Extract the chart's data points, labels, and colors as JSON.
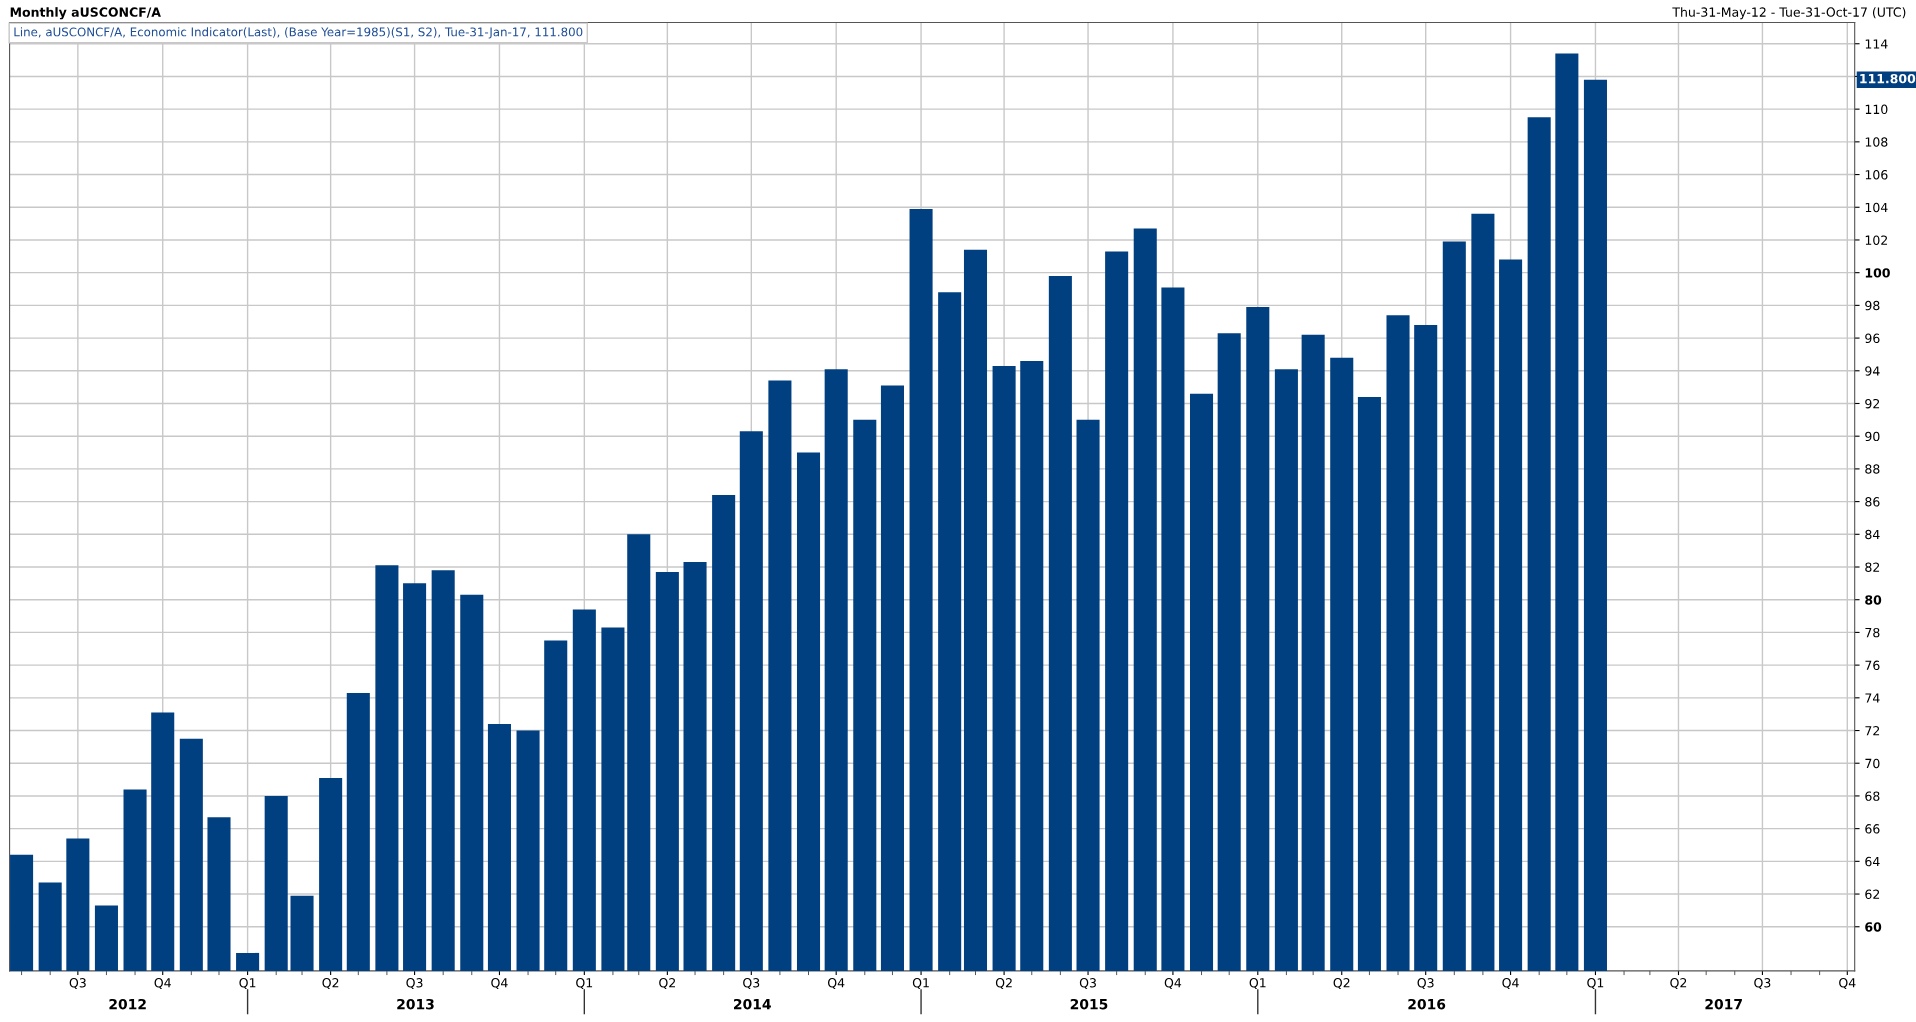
{
  "chart_data": {
    "type": "bar",
    "title": "Monthly aUSCONCF/A",
    "subtitle": "Line, aUSCONCF/A, Economic Indicator(Last), (Base Year=1985)(S1, S2), Tue-31-Jan-17, 111.800",
    "annotations": [
      "Thu-31-May-12 - Tue-31-Oct-17 (UTC)",
      "111.800"
    ],
    "x": [
      "2012-05",
      "2012-06",
      "2012-07",
      "2012-08",
      "2012-09",
      "2012-10",
      "2012-11",
      "2012-12",
      "2013-01",
      "2013-02",
      "2013-03",
      "2013-04",
      "2013-05",
      "2013-06",
      "2013-07",
      "2013-08",
      "2013-09",
      "2013-10",
      "2013-11",
      "2013-12",
      "2014-01",
      "2014-02",
      "2014-03",
      "2014-04",
      "2014-05",
      "2014-06",
      "2014-07",
      "2014-08",
      "2014-09",
      "2014-10",
      "2014-11",
      "2014-12",
      "2015-01",
      "2015-02",
      "2015-03",
      "2015-04",
      "2015-05",
      "2015-06",
      "2015-07",
      "2015-08",
      "2015-09",
      "2015-10",
      "2015-11",
      "2015-12",
      "2016-01",
      "2016-02",
      "2016-03",
      "2016-04",
      "2016-05",
      "2016-06",
      "2016-07",
      "2016-08",
      "2016-09",
      "2016-10",
      "2016-11",
      "2016-12",
      "2017-01"
    ],
    "values": [
      64.4,
      62.7,
      65.4,
      61.3,
      68.4,
      73.1,
      71.5,
      66.7,
      58.4,
      68.0,
      61.9,
      69.1,
      74.3,
      82.1,
      81.0,
      81.8,
      80.3,
      72.4,
      72.0,
      77.5,
      79.4,
      78.3,
      84.0,
      81.7,
      82.3,
      86.4,
      90.3,
      93.4,
      89.0,
      94.1,
      91.0,
      93.1,
      103.9,
      98.8,
      101.4,
      94.3,
      94.6,
      99.8,
      91.0,
      101.3,
      102.7,
      99.1,
      92.6,
      96.3,
      97.9,
      94.1,
      96.2,
      94.8,
      92.4,
      97.4,
      96.8,
      101.9,
      103.6,
      100.8,
      109.5,
      113.4,
      111.8
    ],
    "color": "#003f80",
    "xlim": [
      "2012-04-18",
      "2017-10-09"
    ],
    "xticks": [
      {
        "value": "2012-07",
        "label": "Q3"
      },
      {
        "value": "2012-10",
        "label": "Q4"
      },
      {
        "value": "2013-01",
        "label": "Q1"
      },
      {
        "value": "2013-04",
        "label": "Q2"
      },
      {
        "value": "2013-07",
        "label": "Q3"
      },
      {
        "value": "2013-10",
        "label": "Q4"
      },
      {
        "value": "2014-01",
        "label": "Q1"
      },
      {
        "value": "2014-04",
        "label": "Q2"
      },
      {
        "value": "2014-07",
        "label": "Q3"
      },
      {
        "value": "2014-10",
        "label": "Q4"
      },
      {
        "value": "2015-01",
        "label": "Q1"
      },
      {
        "value": "2015-04",
        "label": "Q2"
      },
      {
        "value": "2015-07",
        "label": "Q3"
      },
      {
        "value": "2015-10",
        "label": "Q4"
      },
      {
        "value": "2016-01",
        "label": "Q1"
      },
      {
        "value": "2016-04",
        "label": "Q2"
      },
      {
        "value": "2016-07",
        "label": "Q3"
      },
      {
        "value": "2016-10",
        "label": "Q4"
      },
      {
        "value": "2017-01",
        "label": "Q1"
      },
      {
        "value": "2017-04",
        "label": "Q2"
      },
      {
        "value": "2017-07",
        "label": "Q3"
      },
      {
        "value": "2017-10",
        "label": "Q4"
      }
    ],
    "x2lim": [
      "2012-04-18",
      "2017-10-09"
    ],
    "x2ticks": [
      {
        "value": "2012-08-24",
        "label": "2012"
      },
      {
        "value": "2013-01",
        "label": null
      },
      {
        "value": "2013-07-02",
        "label": "2013"
      },
      {
        "value": "2014-01",
        "label": null
      },
      {
        "value": "2014-07-02",
        "label": "2014"
      },
      {
        "value": "2015-01",
        "label": null
      },
      {
        "value": "2015-07-02",
        "label": "2015"
      },
      {
        "value": "2016-01",
        "label": null
      },
      {
        "value": "2016-07-02",
        "label": "2016"
      },
      {
        "value": "2017-01",
        "label": null
      },
      {
        "value": "2017-05-20",
        "label": "2017"
      }
    ],
    "ylim": [
      57.3,
      115.3
    ],
    "yticks": [
      60,
      62,
      64,
      66,
      68,
      70,
      72,
      74,
      76,
      78,
      80,
      82,
      84,
      86,
      88,
      90,
      92,
      94,
      96,
      98,
      100,
      102,
      104,
      106,
      108,
      110,
      {
        "value": 112,
        "label": null
      },
      114
    ],
    "grid": true,
    "legend": false
  }
}
